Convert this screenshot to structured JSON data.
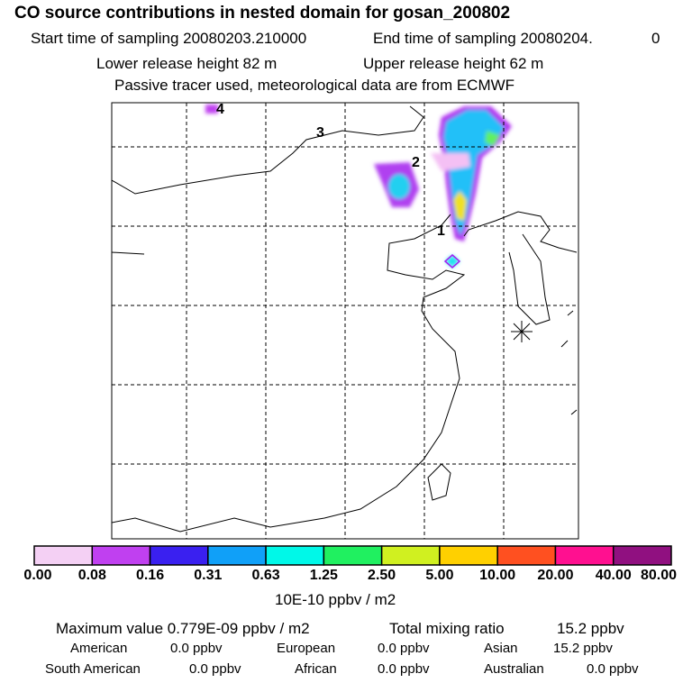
{
  "title": "CO  source contributions in nested domain for gosan_200802",
  "start_label": "Start time of sampling 20080203.210000",
  "end_label": "End time of sampling 20080204.",
  "end_value": "0",
  "lower_release": "Lower release height   82 m",
  "upper_release": "Upper release height   62 m",
  "tracer_note": "Passive tracer used, meteorological data are from ECMWF",
  "map": {
    "point_labels": [
      "1",
      "2",
      "3",
      "4"
    ],
    "receptor_icon": "asterisk-marker"
  },
  "colorbar": {
    "ticks": [
      "0.00",
      "0.08",
      "0.16",
      "0.31",
      "0.63",
      "1.25",
      "2.50",
      "5.00",
      "10.00",
      "20.00",
      "40.00",
      "80.00"
    ],
    "colors": [
      "#f4d0f4",
      "#c040f0",
      "#3a20f0",
      "#10a0f8",
      "#00f8e8",
      "#20f060",
      "#d0f020",
      "#ffd000",
      "#ff5020",
      "#ff1090",
      "#901080"
    ],
    "unit": "10E-10 ppbv / m2"
  },
  "summary": {
    "max_label": "Maximum value  0.779E-09 ppbv / m2",
    "total_label": "Total mixing ratio",
    "total_value": "15.2 ppbv",
    "regions": [
      {
        "name": "American",
        "value": "0.0 ppbv"
      },
      {
        "name": "European",
        "value": "0.0 ppbv"
      },
      {
        "name": "Asian",
        "value": "15.2 ppbv"
      },
      {
        "name": "South American",
        "value": "0.0 ppbv"
      },
      {
        "name": "African",
        "value": "0.0 ppbv"
      },
      {
        "name": "Australian",
        "value": "0.0 ppbv"
      }
    ]
  }
}
